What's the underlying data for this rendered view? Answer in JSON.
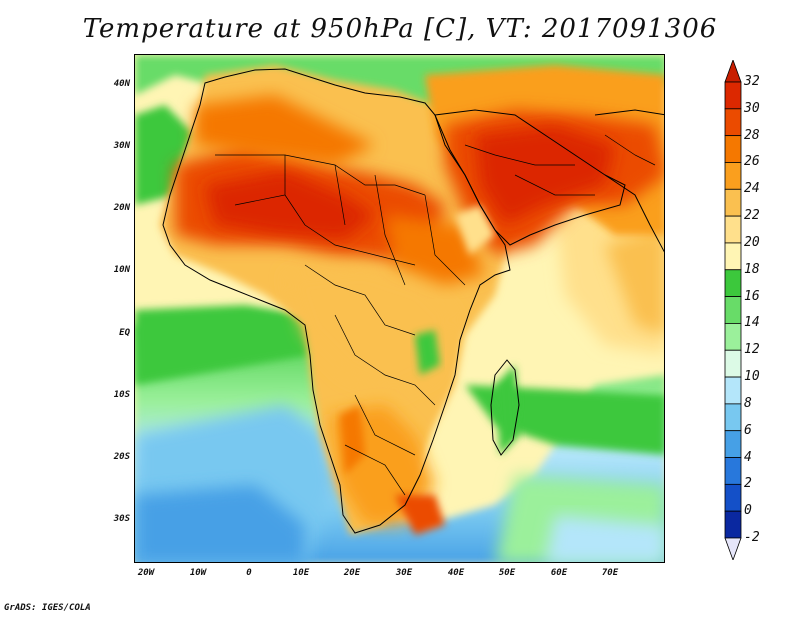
{
  "title": "Temperature at 950hPa [C], VT: 2017091306",
  "credit": "GrADS: IGES/COLA",
  "y_axis_labels": [
    "40N",
    "30N",
    "20N",
    "10N",
    "EQ",
    "10S",
    "20S",
    "30S"
  ],
  "x_axis_labels": [
    "20W",
    "10W",
    "0",
    "10E",
    "20E",
    "30E",
    "40E",
    "50E",
    "60E",
    "70E"
  ],
  "colorbar": {
    "labels": [
      "32",
      "30",
      "28",
      "26",
      "24",
      "22",
      "20",
      "18",
      "16",
      "14",
      "12",
      "10",
      "8",
      "6",
      "4",
      "2",
      "0",
      "-2"
    ],
    "colors": [
      "#dc2800",
      "#eb4b00",
      "#f57800",
      "#fa9f1e",
      "#fac050",
      "#ffe08c",
      "#fff5b4",
      "#3cc83c",
      "#68dc68",
      "#9bf09b",
      "#dcfae6",
      "#b4e6fa",
      "#78c8f0",
      "#46a0e6",
      "#2878dc",
      "#1450c8",
      "#0a28a0",
      "#000064"
    ],
    "over_color": "#c81e00",
    "under_color": "#e6e6fa"
  },
  "map": {
    "region": "Africa, Middle East and South Asia",
    "lon_range": [
      -25,
      80
    ],
    "lat_range": [
      -37,
      45
    ],
    "variable": "Temperature",
    "level": "950hPa",
    "units": "C",
    "valid_time": "2017091306"
  }
}
